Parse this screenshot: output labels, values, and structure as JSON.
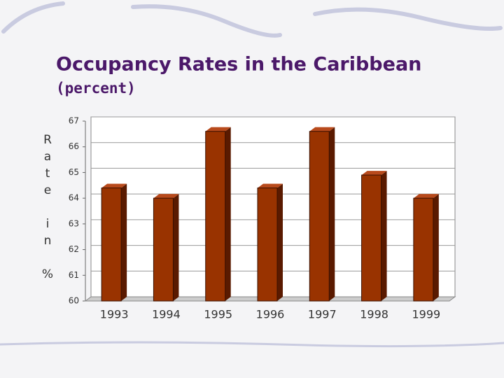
{
  "chart_data": {
    "type": "bar",
    "title": "Occupancy Rates in the Caribbean",
    "subtitle": "(percent)",
    "y_label": "Rate in %",
    "categories": [
      "1993",
      "1994",
      "1995",
      "1996",
      "1997",
      "1998",
      "1999"
    ],
    "values": [
      64.4,
      64.0,
      66.6,
      64.4,
      66.6,
      64.9,
      64.0
    ],
    "color": "#993300",
    "ylim": [
      60,
      67
    ],
    "yticks": [
      60,
      61,
      62,
      63,
      64,
      65,
      66,
      67
    ],
    "grid": true
  }
}
